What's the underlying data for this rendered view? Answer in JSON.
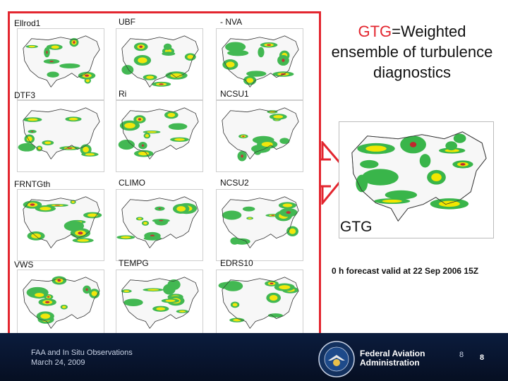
{
  "panels": [
    {
      "label": "Ellrod1"
    },
    {
      "label": "UBF"
    },
    {
      "label": "- NVA"
    },
    {
      "label": "DTF3"
    },
    {
      "label": "Ri"
    },
    {
      "label": "NCSU1"
    },
    {
      "label": "FRNTGth"
    },
    {
      "label": "CLIMO"
    },
    {
      "label": "NCSU2"
    },
    {
      "label": "VWS"
    },
    {
      "label": "TEMPG"
    },
    {
      "label": "EDRS10"
    }
  ],
  "callout": {
    "gtg": "GTG",
    "rest": "=Weighted ensemble of turbulence diagnostics"
  },
  "big_map": {
    "label": "GTG"
  },
  "caption": "0 h forecast valid at 22 Sep 2006 15Z",
  "footer": {
    "title": "FAA and In Situ Observations",
    "date": "March 24, 2009",
    "agency_line1": "Federal Aviation",
    "agency_line2": "Administration",
    "page_a": "8",
    "page_b": "8"
  },
  "colors": {
    "frame": "#e3262f",
    "footer": "#0b1c3d",
    "turb_low": "#39b54a",
    "turb_mid": "#f2e600",
    "turb_high": "#c1272d"
  }
}
